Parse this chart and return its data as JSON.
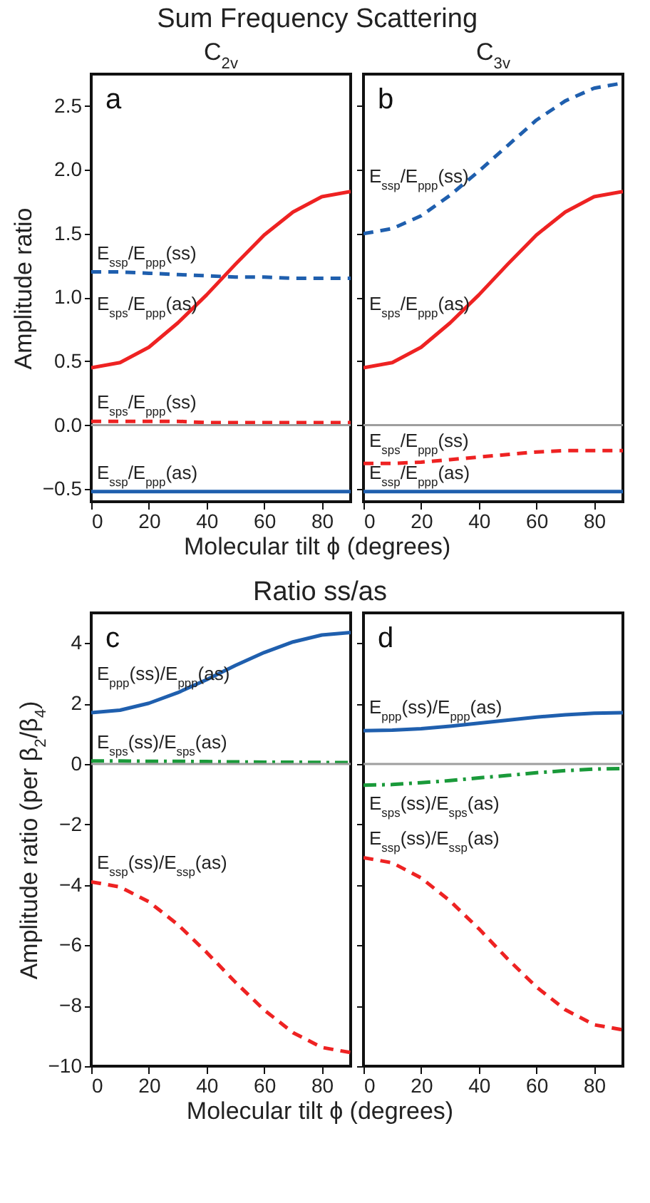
{
  "chart_data": [
    {
      "type": "line",
      "title": "Sum Frequency Scattering",
      "subtitle": "C$_{2v}$",
      "ylabel": "Amplitude ratio",
      "xlabel": "Molecular tilt ϕ (degrees)",
      "annotations": [
        "a"
      ],
      "x": [
        0,
        10,
        20,
        30,
        40,
        50,
        60,
        70,
        80,
        90
      ],
      "xlim": [
        0,
        90
      ],
      "xticks": [
        0,
        20,
        40,
        60,
        80
      ],
      "ylim": [
        -0.6,
        2.75
      ],
      "yticks": [
        {
          "value": -0.5,
          "label": "−0.5"
        },
        {
          "value": 0,
          "label": "0.0"
        },
        {
          "value": 0.5,
          "label": "0.5"
        },
        {
          "value": 1,
          "label": "1.0"
        },
        {
          "value": 1.5,
          "label": "1.5"
        },
        {
          "value": 2,
          "label": "2.0"
        },
        {
          "value": 2.5,
          "label": "2.5"
        }
      ],
      "ref_lines": [
        {
          "axis": "y",
          "value": 0,
          "color": "#9e9e9e"
        }
      ],
      "series": [
        {
          "name": "E$_{ssp}$/E$_{ppp}$(ss)",
          "color": "#1f5fae",
          "line_style": "dashed",
          "values": [
            1.2,
            1.2,
            1.19,
            1.18,
            1.17,
            1.16,
            1.16,
            1.15,
            1.15,
            1.15
          ]
        },
        {
          "name": "E$_{sps}$/E$_{ppp}$(as)",
          "color": "#ee2222",
          "line_style": "solid",
          "values": [
            0.45,
            0.49,
            0.61,
            0.8,
            1.02,
            1.26,
            1.49,
            1.67,
            1.79,
            1.83
          ]
        },
        {
          "name": "E$_{sps}$/E$_{ppp}$(ss)",
          "color": "#ee2222",
          "line_style": "dashed",
          "values": [
            0.03,
            0.03,
            0.03,
            0.03,
            0.02,
            0.02,
            0.02,
            0.02,
            0.02,
            0.02
          ]
        },
        {
          "name": "E$_{ssp}$/E$_{ppp}$(as)",
          "color": "#1f5fae",
          "line_style": "solid",
          "values": [
            -0.52,
            -0.52,
            -0.52,
            -0.52,
            -0.52,
            -0.52,
            -0.52,
            -0.52,
            -0.52,
            -0.52
          ]
        }
      ]
    },
    {
      "type": "line",
      "subtitle": "C$_{3v}$",
      "annotations": [
        "b"
      ],
      "tick_labels": "x",
      "x": [
        0,
        10,
        20,
        30,
        40,
        50,
        60,
        70,
        80,
        90
      ],
      "xlim": [
        0,
        90
      ],
      "xticks": [
        0,
        20,
        40,
        60,
        80
      ],
      "ylim": [
        -0.6,
        2.75
      ],
      "yticks": [
        -0.5,
        0,
        0.5,
        1,
        1.5,
        2,
        2.5
      ],
      "ref_lines": [
        {
          "axis": "y",
          "value": 0,
          "color": "#9e9e9e"
        }
      ],
      "series": [
        {
          "name": "E$_{ssp}$/E$_{ppp}$(ss)",
          "color": "#1f5fae",
          "line_style": "dashed",
          "values": [
            1.5,
            1.54,
            1.64,
            1.8,
            1.99,
            2.19,
            2.39,
            2.54,
            2.64,
            2.68
          ]
        },
        {
          "name": "E$_{sps}$/E$_{ppp}$(as)",
          "color": "#ee2222",
          "line_style": "solid",
          "values": [
            0.45,
            0.49,
            0.61,
            0.8,
            1.02,
            1.26,
            1.49,
            1.67,
            1.79,
            1.83
          ]
        },
        {
          "name": "E$_{sps}$/E$_{ppp}$(ss)",
          "color": "#ee2222",
          "line_style": "dashed",
          "values": [
            -0.3,
            -0.3,
            -0.29,
            -0.27,
            -0.25,
            -0.23,
            -0.21,
            -0.2,
            -0.2,
            -0.2
          ]
        },
        {
          "name": "E$_{ssp}$/E$_{ppp}$(as)",
          "color": "#1f5fae",
          "line_style": "solid",
          "values": [
            -0.52,
            -0.52,
            -0.52,
            -0.52,
            -0.52,
            -0.52,
            -0.52,
            -0.52,
            -0.52,
            -0.52
          ]
        }
      ]
    },
    {
      "type": "line",
      "title": "Ratio ss/as",
      "ylabel": "Amplitude ratio (per β$_{2}$/β$_{4}$)",
      "xlabel": "Molecular tilt ϕ (degrees)",
      "annotations": [
        "c"
      ],
      "x": [
        0,
        10,
        20,
        30,
        40,
        50,
        60,
        70,
        80,
        90
      ],
      "xlim": [
        0,
        90
      ],
      "xticks": [
        0,
        20,
        40,
        60,
        80
      ],
      "ylim": [
        -10,
        5
      ],
      "yticks": [
        -10,
        -8,
        -6,
        -4,
        -2,
        0,
        2,
        4
      ],
      "ref_lines": [
        {
          "axis": "y",
          "value": 0,
          "color": "#9e9e9e"
        }
      ],
      "series": [
        {
          "name": "E$_{ppp}$(ss)/E$_{ppp}$(as)",
          "color": "#1f5fae",
          "line_style": "solid",
          "values": [
            1.7,
            1.78,
            2.01,
            2.36,
            2.79,
            3.26,
            3.69,
            4.04,
            4.27,
            4.35
          ]
        },
        {
          "name": "E$_{sps}$(ss)/E$_{sps}$(as)",
          "color": "#1a9a3a",
          "line_style": "dashdot",
          "values": [
            0.1,
            0.1,
            0.09,
            0.09,
            0.08,
            0.07,
            0.06,
            0.06,
            0.05,
            0.05
          ]
        },
        {
          "name": "E$_{ssp}$(ss)/E$_{ssp}$(as)",
          "color": "#ee2222",
          "line_style": "dashed",
          "values": [
            -3.9,
            -4.07,
            -4.56,
            -5.31,
            -6.23,
            -7.22,
            -8.14,
            -8.89,
            -9.38,
            -9.55
          ]
        }
      ]
    },
    {
      "type": "line",
      "annotations": [
        "d"
      ],
      "tick_labels": "x",
      "x": [
        0,
        10,
        20,
        30,
        40,
        50,
        60,
        70,
        80,
        90
      ],
      "xlim": [
        0,
        90
      ],
      "xticks": [
        0,
        20,
        40,
        60,
        80
      ],
      "ylim": [
        -10,
        5
      ],
      "yticks": [
        -10,
        -8,
        -6,
        -4,
        -2,
        0,
        2,
        4
      ],
      "ref_lines": [
        {
          "axis": "y",
          "value": 0,
          "color": "#9e9e9e"
        }
      ],
      "series": [
        {
          "name": "E$_{ppp}$(ss)/E$_{ppp}$(as)",
          "color": "#1f5fae",
          "line_style": "solid",
          "values": [
            1.1,
            1.12,
            1.17,
            1.25,
            1.35,
            1.45,
            1.55,
            1.63,
            1.68,
            1.7
          ]
        },
        {
          "name": "E$_{sps}$(ss)/E$_{sps}$(as)",
          "color": "#1a9a3a",
          "line_style": "dashdot",
          "values": [
            -0.7,
            -0.68,
            -0.62,
            -0.55,
            -0.46,
            -0.38,
            -0.29,
            -0.22,
            -0.17,
            -0.15
          ]
        },
        {
          "name": "E$_{ssp}$(ss)/E$_{ssp}$(as)",
          "color": "#ee2222",
          "line_style": "dashed",
          "values": [
            -3.1,
            -3.27,
            -3.77,
            -4.53,
            -5.45,
            -6.45,
            -7.38,
            -8.13,
            -8.63,
            -8.8
          ]
        }
      ]
    }
  ]
}
